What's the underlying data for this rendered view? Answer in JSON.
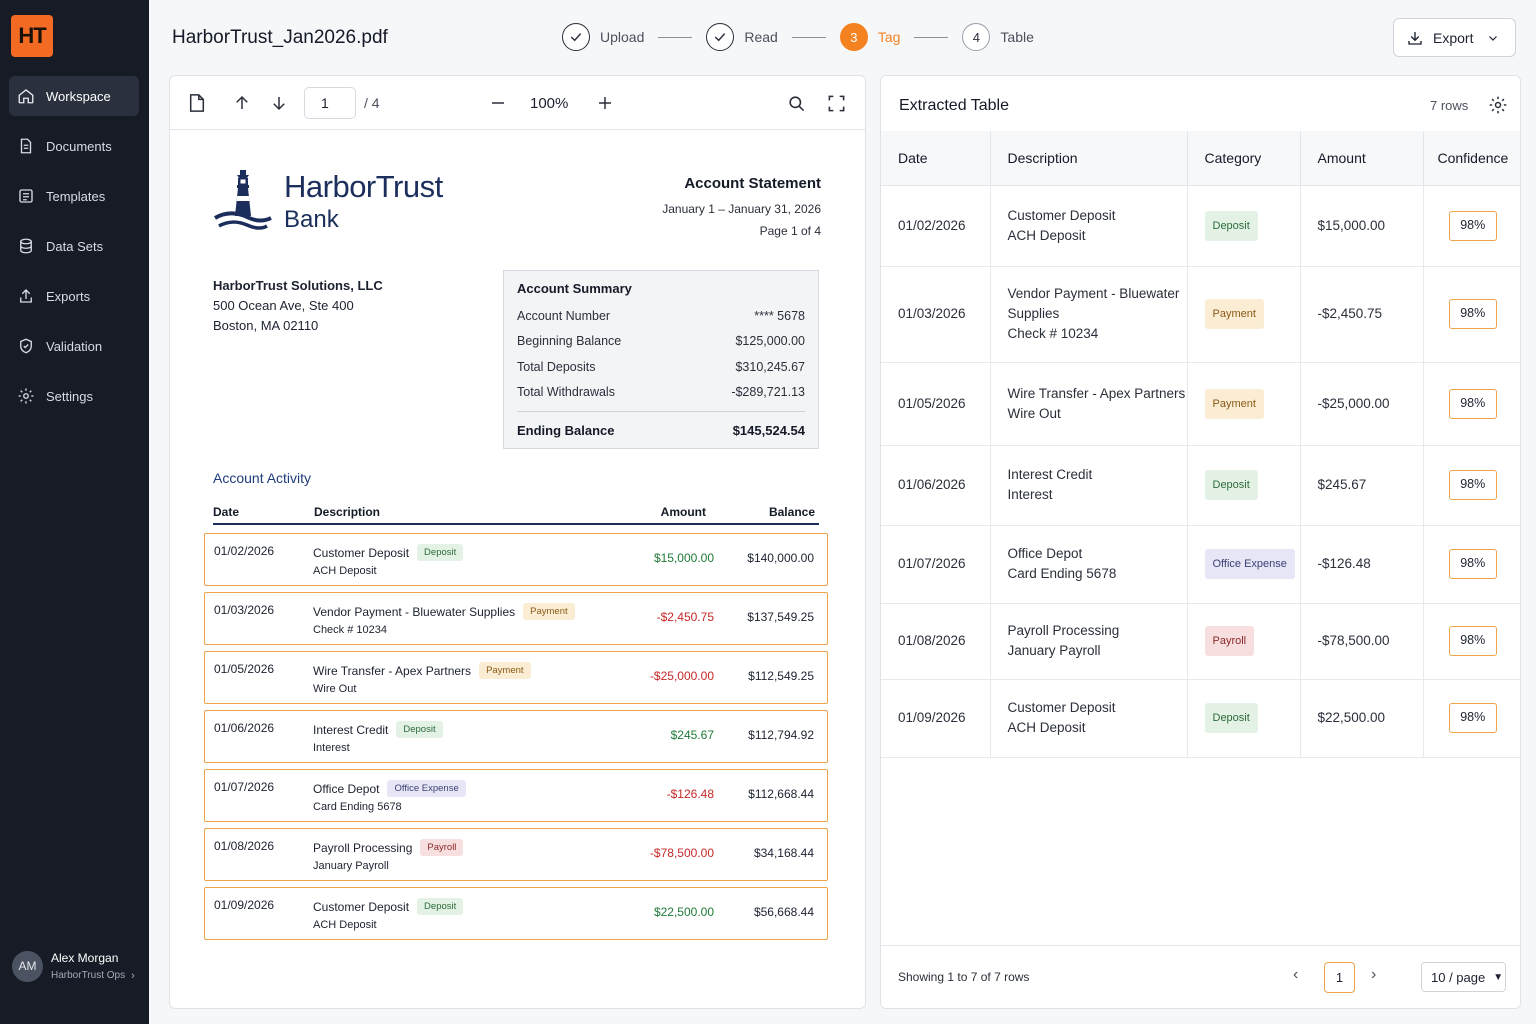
{
  "app": {
    "logo_text": "HT",
    "accent": "#f36a22"
  },
  "sidebar": {
    "items": [
      {
        "label": "Workspace",
        "icon": "home-icon",
        "active": true
      },
      {
        "label": "Documents",
        "icon": "document-icon"
      },
      {
        "label": "Templates",
        "icon": "template-icon"
      },
      {
        "label": "Data Sets",
        "icon": "database-icon"
      },
      {
        "label": "Exports",
        "icon": "upload-icon"
      },
      {
        "label": "Validation",
        "icon": "shield-check-icon"
      },
      {
        "label": "Settings",
        "icon": "gear-icon"
      }
    ],
    "user": {
      "initials": "AM",
      "name": "Alex Morgan",
      "org": "HarborTrust Ops"
    }
  },
  "header": {
    "filename": "HarborTrust_Jan2026.pdf",
    "steps": [
      {
        "label": "Upload",
        "state": "done"
      },
      {
        "label": "Read",
        "state": "done"
      },
      {
        "label": "Tag",
        "number": "3",
        "state": "current"
      },
      {
        "label": "Table",
        "number": "4",
        "state": "todo"
      }
    ],
    "export_label": "Export"
  },
  "viewer": {
    "page": "1",
    "page_total": "/ 4",
    "zoom": "100%"
  },
  "statement": {
    "bank_name_line1": "HarborTrust",
    "bank_name_line2": "Bank",
    "title": "Account Statement",
    "period": "January 1 – January 31, 2026",
    "page": "Page 1 of 4",
    "customer": {
      "name": "HarborTrust Solutions, LLC",
      "street": "500 Ocean Ave, Ste 400",
      "city": "Boston, MA 02110"
    },
    "summary": {
      "title": "Account Summary",
      "rows": [
        {
          "label": "Account Number",
          "value": "**** 5678"
        },
        {
          "label": "Beginning Balance",
          "value": "$125,000.00"
        },
        {
          "label": "Total Deposits",
          "value": "$310,245.67"
        },
        {
          "label": "Total Withdrawals",
          "value": "-$289,721.13"
        }
      ],
      "ending_label": "Ending Balance",
      "ending_value": "$145,524.54"
    },
    "activity_title": "Account Activity",
    "activity_headers": {
      "date": "Date",
      "description": "Description",
      "amount": "Amount",
      "balance": "Balance"
    },
    "activity": [
      {
        "date": "01/02/2026",
        "desc": "Customer Deposit",
        "sub": "ACH Deposit",
        "tag": "Deposit",
        "tag_type": "deposit",
        "amount": "$15,000.00",
        "sign": "pos",
        "balance": "$140,000.00"
      },
      {
        "date": "01/03/2026",
        "desc": "Vendor Payment - Bluewater Supplies",
        "sub": "Check # 10234",
        "tag": "Payment",
        "tag_type": "payment",
        "amount": "-$2,450.75",
        "sign": "neg",
        "balance": "$137,549.25"
      },
      {
        "date": "01/05/2026",
        "desc": "Wire Transfer - Apex Partners",
        "sub": "Wire Out",
        "tag": "Payment",
        "tag_type": "payment",
        "amount": "-$25,000.00",
        "sign": "neg",
        "balance": "$112,549.25"
      },
      {
        "date": "01/06/2026",
        "desc": "Interest Credit",
        "sub": "Interest",
        "tag": "Deposit",
        "tag_type": "deposit",
        "amount": "$245.67",
        "sign": "pos",
        "balance": "$112,794.92"
      },
      {
        "date": "01/07/2026",
        "desc": "Office Depot",
        "sub": "Card Ending 5678",
        "tag": "Office Expense",
        "tag_type": "office",
        "amount": "-$126.48",
        "sign": "neg",
        "balance": "$112,668.44"
      },
      {
        "date": "01/08/2026",
        "desc": "Payroll Processing",
        "sub": "January Payroll",
        "tag": "Payroll",
        "tag_type": "payroll",
        "amount": "-$78,500.00",
        "sign": "neg",
        "balance": "$34,168.44"
      },
      {
        "date": "01/09/2026",
        "desc": "Customer Deposit",
        "sub": "ACH Deposit",
        "tag": "Deposit",
        "tag_type": "deposit",
        "amount": "$22,500.00",
        "sign": "pos",
        "balance": "$56,668.44"
      }
    ]
  },
  "extracted": {
    "title": "Extracted Table",
    "row_count": "7 rows",
    "headers": [
      "Date",
      "Description",
      "Category",
      "Amount",
      "Confidence"
    ],
    "rows": [
      {
        "date": "01/02/2026",
        "desc_lines": [
          "Customer Deposit",
          "ACH Deposit"
        ],
        "category": "Deposit",
        "cat_type": "deposit",
        "amount": "$15,000.00",
        "sign": "pos",
        "confidence": "98%"
      },
      {
        "date": "01/03/2026",
        "desc_lines": [
          "Vendor Payment - Bluewater",
          "Supplies",
          "Check # 10234"
        ],
        "category": "Payment",
        "cat_type": "payment",
        "amount": "-$2,450.75",
        "sign": "neg",
        "confidence": "98%"
      },
      {
        "date": "01/05/2026",
        "desc_lines": [
          "Wire Transfer - Apex Partners",
          "Wire Out"
        ],
        "category": "Payment",
        "cat_type": "payment",
        "amount": "-$25,000.00",
        "sign": "neg",
        "confidence": "98%"
      },
      {
        "date": "01/06/2026",
        "desc_lines": [
          "Interest Credit",
          "Interest"
        ],
        "category": "Deposit",
        "cat_type": "deposit",
        "amount": "$245.67",
        "sign": "pos",
        "confidence": "98%"
      },
      {
        "date": "01/07/2026",
        "desc_lines": [
          "Office Depot",
          "Card Ending 5678"
        ],
        "category": "Office Expense",
        "cat_type": "office",
        "amount": "-$126.48",
        "sign": "neg",
        "confidence": "98%"
      },
      {
        "date": "01/08/2026",
        "desc_lines": [
          "Payroll Processing",
          "January Payroll"
        ],
        "category": "Payroll",
        "cat_type": "payroll",
        "amount": "-$78,500.00",
        "sign": "neg",
        "confidence": "98%"
      },
      {
        "date": "01/09/2026",
        "desc_lines": [
          "Customer Deposit",
          "ACH Deposit"
        ],
        "category": "Deposit",
        "cat_type": "deposit",
        "amount": "$22,500.00",
        "sign": "pos",
        "confidence": "98%"
      }
    ],
    "footer": {
      "showing": "Showing 1 to 7 of 7 rows",
      "current_page": "1",
      "per_page": "10 / page"
    }
  }
}
